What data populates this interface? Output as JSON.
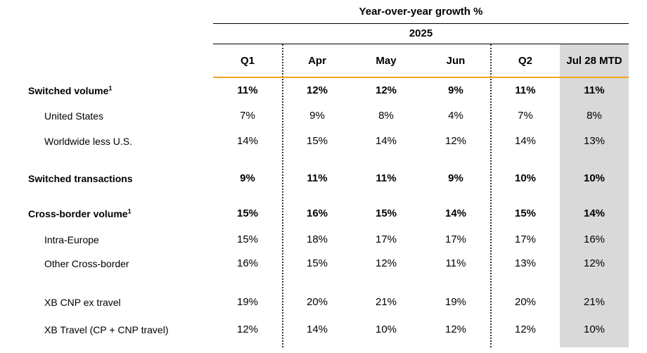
{
  "header": {
    "title": "Year-over-year growth %",
    "year": "2025"
  },
  "columns": [
    "Q1",
    "Apr",
    "May",
    "Jun",
    "Q2",
    "Jul 28 MTD"
  ],
  "rows": [
    {
      "label": "Switched volume",
      "footnote": "1",
      "bold": true,
      "indent": false,
      "values": [
        "11%",
        "12%",
        "12%",
        "9%",
        "11%",
        "11%"
      ]
    },
    {
      "label": "United States",
      "footnote": "",
      "bold": false,
      "indent": true,
      "values": [
        "7%",
        "9%",
        "8%",
        "4%",
        "7%",
        "8%"
      ]
    },
    {
      "label": "Worldwide less U.S.",
      "footnote": "",
      "bold": false,
      "indent": true,
      "values": [
        "14%",
        "15%",
        "14%",
        "12%",
        "14%",
        "13%"
      ]
    },
    {
      "label": "Switched transactions",
      "footnote": "",
      "bold": true,
      "indent": false,
      "values": [
        "9%",
        "11%",
        "11%",
        "9%",
        "10%",
        "10%"
      ]
    },
    {
      "label": "Cross-border volume",
      "footnote": "1",
      "bold": true,
      "indent": false,
      "values": [
        "15%",
        "16%",
        "15%",
        "14%",
        "15%",
        "14%"
      ]
    },
    {
      "label": "Intra-Europe",
      "footnote": "",
      "bold": false,
      "indent": true,
      "values": [
        "15%",
        "18%",
        "17%",
        "17%",
        "17%",
        "16%"
      ]
    },
    {
      "label": "Other Cross-border",
      "footnote": "",
      "bold": false,
      "indent": true,
      "values": [
        "16%",
        "15%",
        "12%",
        "11%",
        "13%",
        "12%"
      ]
    },
    {
      "label": "XB CNP ex travel",
      "footnote": "",
      "bold": false,
      "indent": true,
      "values": [
        "19%",
        "20%",
        "21%",
        "19%",
        "20%",
        "21%"
      ]
    },
    {
      "label": "XB Travel (CP + CNP travel)",
      "footnote": "",
      "bold": false,
      "indent": true,
      "values": [
        "12%",
        "14%",
        "10%",
        "12%",
        "12%",
        "10%"
      ]
    }
  ],
  "colors": {
    "accent_rule": "#f5a21b",
    "highlight_column_bg": "#d9d9d9"
  }
}
